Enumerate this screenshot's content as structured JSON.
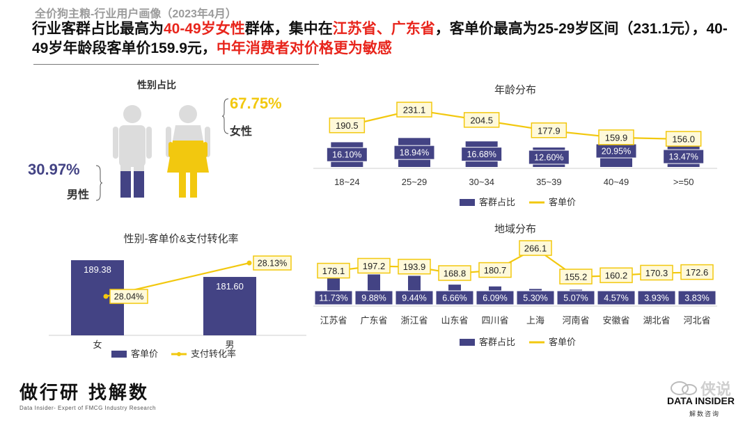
{
  "header": {
    "subtitle": "全价狗主粮-行业用户画像（2023年4月）",
    "headline_parts": [
      {
        "text": "行业客群占比最高为",
        "red": false
      },
      {
        "text": "40-49岁女性",
        "red": true
      },
      {
        "text": "群体，集中在",
        "red": false
      },
      {
        "text": "江苏省、广东省",
        "red": true
      },
      {
        "text": "，客单价最高为25-29岁区间（231.1元），40-49岁年龄段客单价159.9元，",
        "red": false
      },
      {
        "text": "中年消费者对价格更为敏感",
        "red": true
      }
    ]
  },
  "gender": {
    "title": "性别占比",
    "female_pct": "67.75%",
    "female_label": "女性",
    "male_pct": "30.97%",
    "male_label": "男性",
    "female_color": "#f2c80f",
    "male_color": "#434384",
    "figure_color": "#dcdcdc"
  },
  "legend": {
    "bar": "客群占比",
    "line": "客单价",
    "bar2": "客单价",
    "line2": "支付转化率"
  },
  "footer": {
    "slogan": "做行研 找解数",
    "sub": "Data Insider- Expert of FMCG Industry Research",
    "brand": "DATA INSIDER",
    "brand_sub": "解数咨询",
    "watermark": "侠说"
  },
  "chart_data": [
    {
      "type": "bar",
      "title": "年龄分布",
      "categories": [
        "18~24",
        "25~29",
        "30~34",
        "35~39",
        "40~49",
        ">=50"
      ],
      "series": [
        {
          "name": "客群占比",
          "kind": "bar",
          "values": [
            16.1,
            18.94,
            16.68,
            12.6,
            20.95,
            13.47
          ],
          "labels": [
            "16.10%",
            "18.94%",
            "16.68%",
            "12.60%",
            "20.95%",
            "13.47%"
          ],
          "color": "#434384"
        },
        {
          "name": "客单价",
          "kind": "line",
          "values": [
            190.5,
            231.1,
            204.5,
            177.9,
            159.9,
            156.0
          ],
          "labels": [
            "190.5",
            "231.1",
            "204.5",
            "177.9",
            "159.9",
            "156.0"
          ],
          "color": "#f2c80f"
        }
      ]
    },
    {
      "type": "bar",
      "title": "地域分布",
      "categories": [
        "江苏省",
        "广东省",
        "浙江省",
        "山东省",
        "四川省",
        "上海",
        "河南省",
        "安徽省",
        "湖北省",
        "河北省"
      ],
      "series": [
        {
          "name": "客群占比",
          "kind": "bar",
          "values": [
            11.73,
            9.88,
            9.44,
            6.66,
            6.09,
            5.3,
            5.07,
            4.57,
            3.93,
            3.83
          ],
          "labels": [
            "11.73%",
            "9.88%",
            "9.44%",
            "6.66%",
            "6.09%",
            "5.30%",
            "5.07%",
            "4.57%",
            "3.93%",
            "3.83%"
          ],
          "color": "#434384"
        },
        {
          "name": "客单价",
          "kind": "line",
          "values": [
            178.1,
            197.2,
            193.9,
            168.8,
            180.7,
            266.1,
            155.2,
            160.2,
            170.3,
            172.6
          ],
          "labels": [
            "178.1",
            "197.2",
            "193.9",
            "168.8",
            "180.7",
            "266.1",
            "155.2",
            "160.2",
            "170.3",
            "172.6"
          ],
          "color": "#f2c80f"
        }
      ]
    },
    {
      "type": "bar",
      "title": "性别-客单价&支付转化率",
      "categories": [
        "女",
        "男"
      ],
      "series": [
        {
          "name": "客单价",
          "kind": "bar",
          "values": [
            189.38,
            181.6
          ],
          "labels": [
            "189.38",
            "181.60"
          ],
          "color": "#434384"
        },
        {
          "name": "支付转化率",
          "kind": "line",
          "values": [
            28.04,
            28.13
          ],
          "labels": [
            "28.04%",
            "28.13%"
          ],
          "color": "#f2c80f"
        }
      ]
    }
  ]
}
